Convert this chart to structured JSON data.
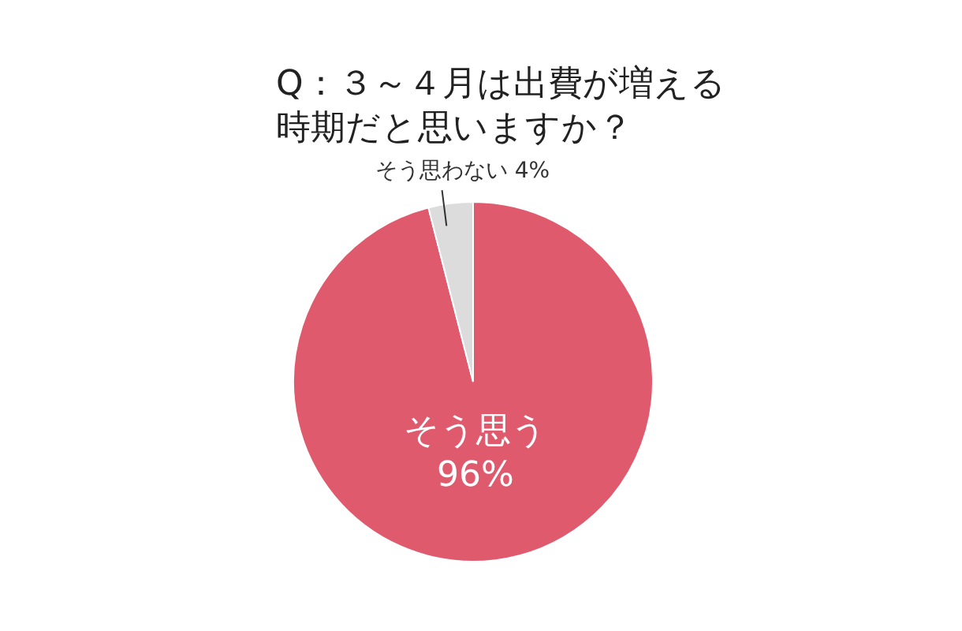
{
  "chart_data": {
    "type": "pie",
    "title": "Q：３～４月は出費が増える時期だと思いますか？",
    "categories": [
      "そう思う",
      "そう思わない"
    ],
    "values": [
      96,
      4
    ],
    "colors": [
      "#e05a6e",
      "#dcdcdc"
    ],
    "value_labels": [
      "96%",
      "4%"
    ],
    "legend": false
  }
}
